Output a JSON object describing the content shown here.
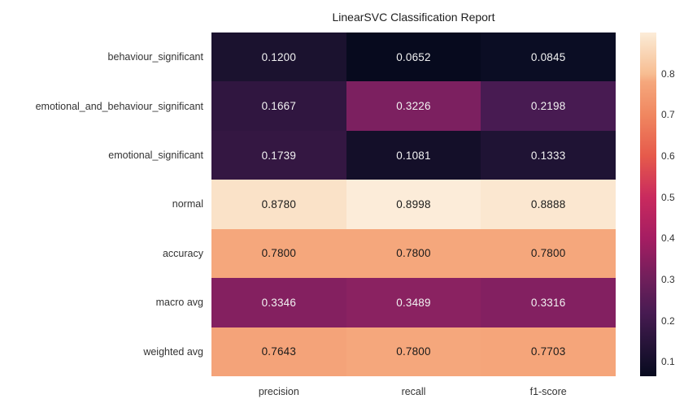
{
  "title": "LinearSVC Classification Report",
  "colors": {
    "background": "#ffffff",
    "text": "#262626",
    "annot_dark": "#1a1a1a",
    "annot_light": "#f2f2f2"
  },
  "chart_data": {
    "type": "heatmap",
    "title": "LinearSVC Classification Report",
    "xlabel": "",
    "ylabel": "",
    "rows": [
      "behaviour_significant",
      "emotional_and_behaviour_significant",
      "emotional_significant",
      "normal",
      "accuracy",
      "macro avg",
      "weighted avg"
    ],
    "columns": [
      "precision",
      "recall",
      "f1-score"
    ],
    "values": [
      [
        0.12,
        0.0652,
        0.0845
      ],
      [
        0.1667,
        0.3226,
        0.2198
      ],
      [
        0.1739,
        0.1081,
        0.1333
      ],
      [
        0.878,
        0.8998,
        0.8888
      ],
      [
        0.78,
        0.78,
        0.78
      ],
      [
        0.3346,
        0.3489,
        0.3316
      ],
      [
        0.7643,
        0.78,
        0.7703
      ]
    ],
    "value_decimals": 4,
    "cell_colors": [
      [
        "#1b122f",
        "#070a1e",
        "#0b0d24"
      ],
      [
        "#301640",
        "#7c2060",
        "#481b52"
      ],
      [
        "#341742",
        "#140f29",
        "#1f1334"
      ],
      [
        "#fae2c8",
        "#fcecd9",
        "#fbe7d0"
      ],
      [
        "#f5a77c",
        "#f5a77c",
        "#f5a77c"
      ],
      [
        "#842060",
        "#8a2261",
        "#832061"
      ],
      [
        "#f4a379",
        "#f5a77c",
        "#f5a57a"
      ]
    ],
    "colorbar": {
      "vmin": 0.0652,
      "vmax": 0.8998,
      "tick_decimals": 1,
      "ticks": [
        0.8,
        0.7,
        0.6,
        0.5,
        0.4,
        0.3,
        0.2,
        0.1
      ],
      "gradient": [
        {
          "pos": 0,
          "color": "#fcecd9"
        },
        {
          "pos": 2.6,
          "color": "#fae2c8"
        },
        {
          "pos": 12.0,
          "color": "#f7bd92"
        },
        {
          "pos": 14.4,
          "color": "#f5a77c"
        },
        {
          "pos": 23.9,
          "color": "#f08760"
        },
        {
          "pos": 35.9,
          "color": "#e65a4b"
        },
        {
          "pos": 47.9,
          "color": "#c92a5e"
        },
        {
          "pos": 59.9,
          "color": "#a51d62"
        },
        {
          "pos": 71.9,
          "color": "#6f1f5b"
        },
        {
          "pos": 81.5,
          "color": "#481b52"
        },
        {
          "pos": 87.8,
          "color": "#301640"
        },
        {
          "pos": 95.8,
          "color": "#150f2b"
        },
        {
          "pos": 100,
          "color": "#070a1e"
        }
      ]
    },
    "grid": false,
    "legend_position": "none"
  }
}
